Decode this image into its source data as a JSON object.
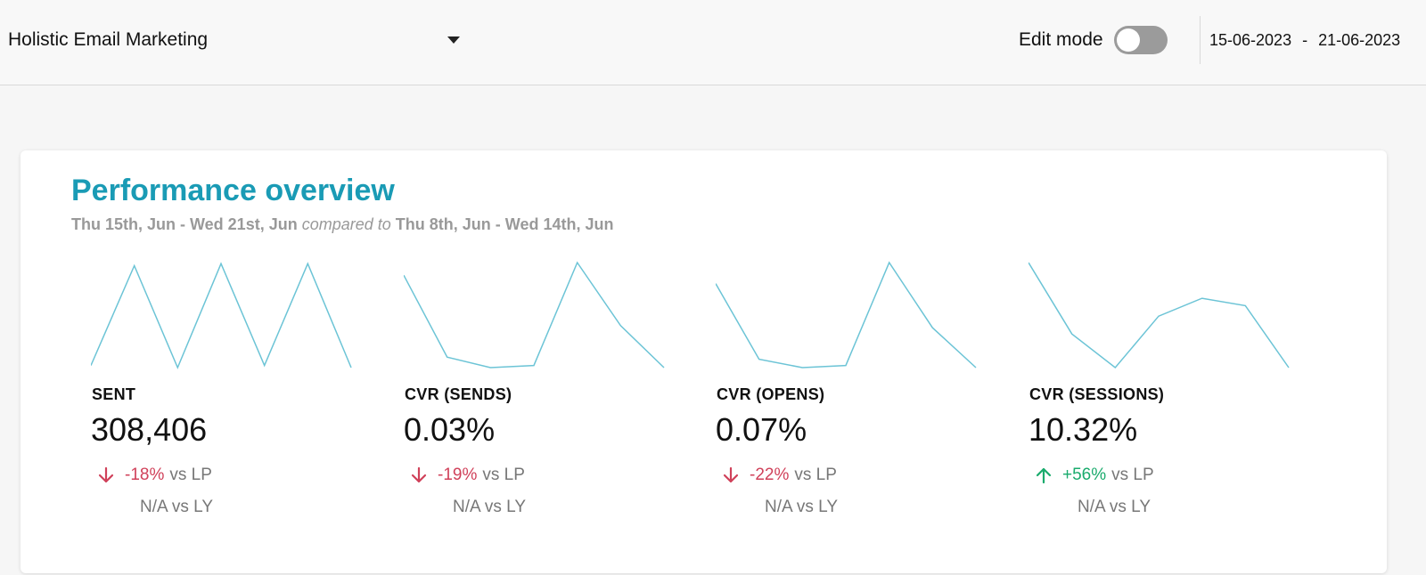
{
  "header": {
    "dashboard_selector": "Holistic Email Marketing",
    "edit_mode_label": "Edit mode",
    "edit_mode_on": false,
    "date_from": "15-06-2023",
    "date_separator": "-",
    "date_to": "21-06-2023"
  },
  "card": {
    "title": "Performance overview",
    "period_current": "Thu 15th, Jun - Wed 21st, Jun",
    "compared_text": "compared to",
    "period_previous": "Thu 8th, Jun - Wed 14th, Jun"
  },
  "colors": {
    "accent": "#1a9bb5",
    "sparkline": "#6cc4d6",
    "negative": "#d0415a",
    "positive": "#1aab6d"
  },
  "metrics": [
    {
      "name": "SENT",
      "value": "308,406",
      "delta": "-18%",
      "delta_direction": "down",
      "delta_suffix": "vs LP",
      "ly_text": "N/A vs LY",
      "sparkline": [
        0.02,
        0.97,
        0.0,
        0.99,
        0.02,
        0.99,
        0.0
      ]
    },
    {
      "name": "CVR (SENDS)",
      "value": "0.03%",
      "delta": "-19%",
      "delta_direction": "down",
      "delta_suffix": "vs LP",
      "ly_text": "N/A vs LY",
      "sparkline": [
        0.88,
        0.1,
        0.0,
        0.02,
        1.0,
        0.4,
        0.0
      ]
    },
    {
      "name": "CVR (OPENS)",
      "value": "0.07%",
      "delta": "-22%",
      "delta_direction": "down",
      "delta_suffix": "vs LP",
      "ly_text": "N/A vs LY",
      "sparkline": [
        0.8,
        0.08,
        0.0,
        0.02,
        1.0,
        0.38,
        0.0
      ]
    },
    {
      "name": "CVR (SESSIONS)",
      "value": "10.32%",
      "delta": "+56%",
      "delta_direction": "up",
      "delta_suffix": "vs LP",
      "ly_text": "N/A vs LY",
      "sparkline": [
        1.0,
        0.32,
        0.0,
        0.49,
        0.66,
        0.59,
        0.0
      ]
    }
  ]
}
